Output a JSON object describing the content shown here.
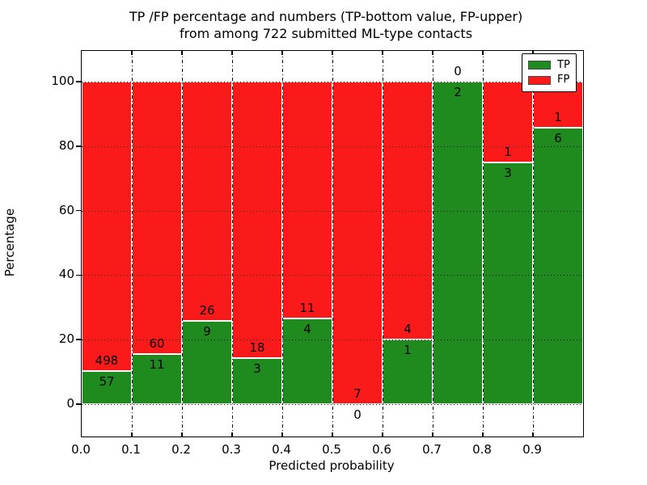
{
  "chart_data": {
    "type": "bar",
    "stacked": true,
    "units": "percent",
    "title_lines": [
      "TP /FP percentage and numbers (TP-bottom value, FP-upper)",
      "from among 722 submitted ML-type contacts"
    ],
    "total_contacts": 722,
    "xlabel": "Predicted probability",
    "ylabel": "Percentage",
    "x_tick_labels": [
      "0.0",
      "0.1",
      "0.2",
      "0.3",
      "0.4",
      "0.5",
      "0.6",
      "0.7",
      "0.8",
      "0.9"
    ],
    "y_ticks": [
      0,
      20,
      40,
      60,
      80,
      100
    ],
    "y_tick_labels": [
      "0",
      "20",
      "40",
      "60",
      "80",
      "100"
    ],
    "xlim": [
      0.0,
      1.0
    ],
    "ylim": [
      -10,
      110
    ],
    "bin_width": 0.1,
    "grid": true,
    "bin_ranges": [
      "0.0-0.1",
      "0.1-0.2",
      "0.2-0.3",
      "0.3-0.4",
      "0.4-0.5",
      "0.5-0.6",
      "0.6-0.7",
      "0.7-0.8",
      "0.8-0.9",
      "0.9-1.0"
    ],
    "series": [
      {
        "name": "TP",
        "color": "#1f8b1f",
        "position": "bottom",
        "values": [
          57,
          11,
          9,
          3,
          4,
          0,
          1,
          2,
          3,
          6
        ]
      },
      {
        "name": "FP",
        "color": "#fb1a1a",
        "position": "top",
        "values": [
          498,
          60,
          26,
          18,
          11,
          7,
          4,
          0,
          1,
          1
        ]
      }
    ],
    "legend": {
      "position": "upper right",
      "entries": [
        {
          "label": "TP",
          "color": "#1f8b1f"
        },
        {
          "label": "FP",
          "color": "#fb1a1a"
        }
      ]
    },
    "colors": {
      "bar_edge": "#ffffff",
      "grid": "#000000",
      "spine": "#000000",
      "background": "#ffffff",
      "text": "#000000"
    }
  }
}
